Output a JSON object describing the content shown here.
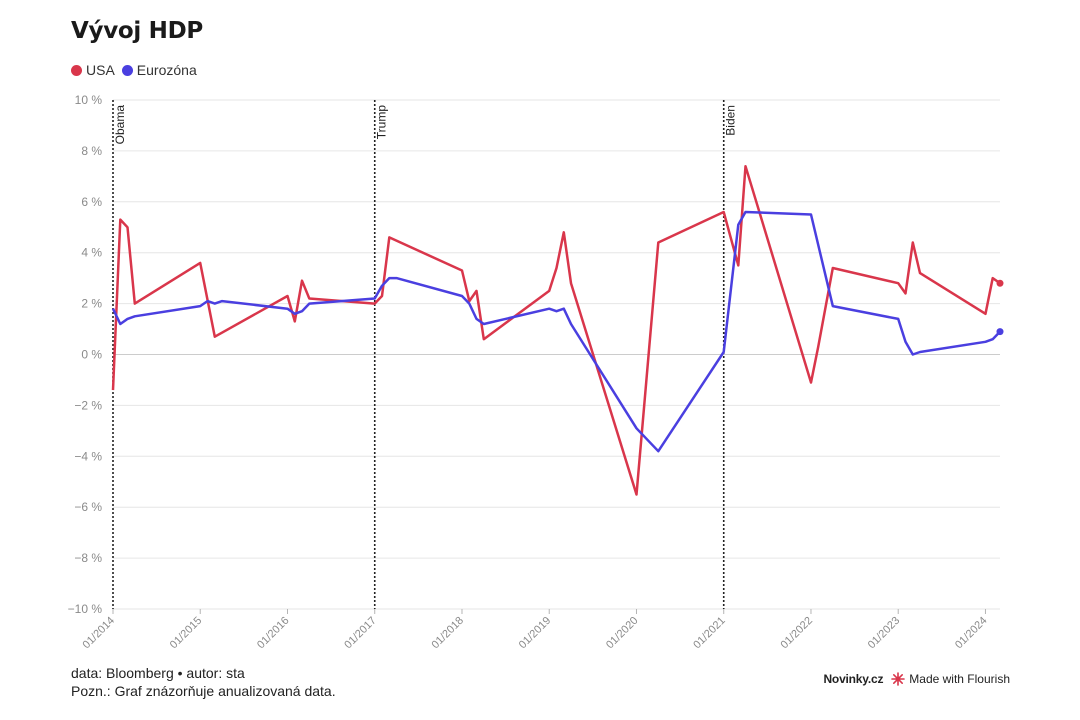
{
  "title": "Vývoj HDP",
  "legend": [
    {
      "label": "USA",
      "color": "#d9364b"
    },
    {
      "label": "Eurozóna",
      "color": "#4a3fe0"
    }
  ],
  "footer": {
    "source": "data: Bloomberg • autor: sta",
    "note": "Pozn.: Graf znázorňuje anualizovaná data."
  },
  "brand": {
    "publisher": "Novinky.cz",
    "made_with": "Made with Flourish"
  },
  "chart_data": {
    "type": "line",
    "ylim": [
      -10,
      10
    ],
    "xlim": [
      "2014-01",
      "2024-03"
    ],
    "yticks": [
      {
        "v": 10,
        "label": "10 %"
      },
      {
        "v": 8,
        "label": "8 %"
      },
      {
        "v": 6,
        "label": "6 %"
      },
      {
        "v": 4,
        "label": "4 %"
      },
      {
        "v": 2,
        "label": "2 %"
      },
      {
        "v": 0,
        "label": "0 %"
      },
      {
        "v": -2,
        "label": "−2 %"
      },
      {
        "v": -4,
        "label": "−4 %"
      },
      {
        "v": -6,
        "label": "−6 %"
      },
      {
        "v": -8,
        "label": "−8 %"
      },
      {
        "v": -10,
        "label": "−10 %"
      }
    ],
    "xticks": [
      {
        "v": "2014-01",
        "label": "01/2014"
      },
      {
        "v": "2015-01",
        "label": "01/2015"
      },
      {
        "v": "2016-01",
        "label": "01/2016"
      },
      {
        "v": "2017-01",
        "label": "01/2017"
      },
      {
        "v": "2018-01",
        "label": "01/2018"
      },
      {
        "v": "2019-01",
        "label": "01/2019"
      },
      {
        "v": "2020-01",
        "label": "01/2020"
      },
      {
        "v": "2021-01",
        "label": "01/2021"
      },
      {
        "v": "2022-01",
        "label": "01/2022"
      },
      {
        "v": "2023-01",
        "label": "01/2023"
      },
      {
        "v": "2024-01",
        "label": "01/2024"
      }
    ],
    "annotations": [
      {
        "x": "2014-01",
        "label": "Obama"
      },
      {
        "x": "2017-01",
        "label": "Trump"
      },
      {
        "x": "2021-01",
        "label": "Biden"
      }
    ],
    "series": [
      {
        "name": "USA",
        "color": "#d9364b",
        "points": [
          [
            "2014-01",
            -1.4
          ],
          [
            "2014-02",
            5.3
          ],
          [
            "2014-03",
            5.0
          ],
          [
            "2014-04",
            2.0
          ],
          [
            "2015-01",
            3.6
          ],
          [
            "2015-03",
            0.7
          ],
          [
            "2016-01",
            2.3
          ],
          [
            "2016-02",
            1.3
          ],
          [
            "2016-03",
            2.9
          ],
          [
            "2016-04",
            2.2
          ],
          [
            "2017-01",
            2.0
          ],
          [
            "2017-02",
            2.3
          ],
          [
            "2017-03",
            4.6
          ],
          [
            "2018-01",
            3.3
          ],
          [
            "2018-02",
            2.1
          ],
          [
            "2018-03",
            2.5
          ],
          [
            "2018-04",
            0.6
          ],
          [
            "2019-01",
            2.5
          ],
          [
            "2019-02",
            3.4
          ],
          [
            "2019-03",
            4.8
          ],
          [
            "2019-04",
            2.8
          ],
          [
            "2020-01",
            -5.5
          ],
          [
            "2020-04",
            4.4
          ],
          [
            "2021-01",
            5.6
          ],
          [
            "2021-03",
            3.5
          ],
          [
            "2021-04",
            7.4
          ],
          [
            "2022-01",
            -1.1
          ],
          [
            "2022-02",
            0.3
          ],
          [
            "2022-04",
            3.4
          ],
          [
            "2023-01",
            2.8
          ],
          [
            "2023-02",
            2.4
          ],
          [
            "2023-03",
            4.4
          ],
          [
            "2023-04",
            3.2
          ],
          [
            "2024-01",
            1.6
          ],
          [
            "2024-02",
            3.0
          ],
          [
            "2024-03",
            2.8
          ]
        ]
      },
      {
        "name": "Eurozóna",
        "color": "#4a3fe0",
        "points": [
          [
            "2014-01",
            1.8
          ],
          [
            "2014-02",
            1.2
          ],
          [
            "2014-03",
            1.4
          ],
          [
            "2014-04",
            1.5
          ],
          [
            "2015-01",
            1.9
          ],
          [
            "2015-02",
            2.1
          ],
          [
            "2015-03",
            2.0
          ],
          [
            "2015-04",
            2.1
          ],
          [
            "2016-01",
            1.8
          ],
          [
            "2016-02",
            1.6
          ],
          [
            "2016-03",
            1.7
          ],
          [
            "2016-04",
            2.0
          ],
          [
            "2017-01",
            2.2
          ],
          [
            "2017-02",
            2.7
          ],
          [
            "2017-03",
            3.0
          ],
          [
            "2017-04",
            3.0
          ],
          [
            "2018-01",
            2.3
          ],
          [
            "2018-02",
            2.0
          ],
          [
            "2018-03",
            1.4
          ],
          [
            "2018-04",
            1.2
          ],
          [
            "2019-01",
            1.8
          ],
          [
            "2019-02",
            1.7
          ],
          [
            "2019-03",
            1.8
          ],
          [
            "2019-04",
            1.2
          ],
          [
            "2020-01",
            -2.9
          ],
          [
            "2020-04",
            -3.8
          ],
          [
            "2021-01",
            0.1
          ],
          [
            "2021-03",
            5.1
          ],
          [
            "2021-04",
            5.6
          ],
          [
            "2022-01",
            5.5
          ],
          [
            "2022-04",
            1.9
          ],
          [
            "2023-01",
            1.4
          ],
          [
            "2023-02",
            0.5
          ],
          [
            "2023-03",
            0.0
          ],
          [
            "2023-04",
            0.1
          ],
          [
            "2024-01",
            0.5
          ],
          [
            "2024-02",
            0.6
          ],
          [
            "2024-03",
            0.9
          ]
        ]
      }
    ]
  }
}
